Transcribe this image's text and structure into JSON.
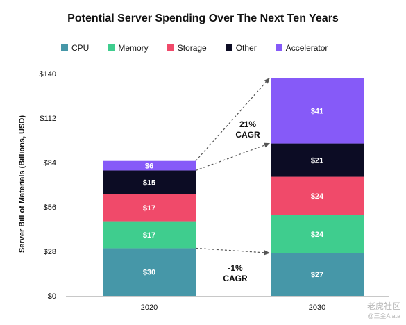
{
  "chart_data": {
    "type": "bar",
    "stacked": true,
    "title": "Potential Server Spending Over The Next Ten Years",
    "ylabel": "Server Bill of Materials (Billions, USD)",
    "xlabel": "",
    "categories": [
      "2020",
      "2030"
    ],
    "ylim": [
      0,
      140
    ],
    "yticks": [
      0,
      28,
      56,
      84,
      112,
      140
    ],
    "ytick_labels": [
      "$0",
      "$28",
      "$56",
      "$84",
      "$112",
      "$140"
    ],
    "series": [
      {
        "name": "CPU",
        "color": "#4697a8",
        "values": [
          30,
          27
        ],
        "labels": [
          "$30",
          "$27"
        ]
      },
      {
        "name": "Memory",
        "color": "#3fcd8e",
        "values": [
          17,
          24
        ],
        "labels": [
          "$17",
          "$24"
        ]
      },
      {
        "name": "Storage",
        "color": "#f04a6a",
        "values": [
          17,
          24
        ],
        "labels": [
          "$17",
          "$24"
        ]
      },
      {
        "name": "Other",
        "color": "#0c0c24",
        "values": [
          15,
          21
        ],
        "labels": [
          "$15",
          "$21"
        ]
      },
      {
        "name": "Accelerator",
        "color": "#865af8",
        "values": [
          6,
          41
        ],
        "labels": [
          "$6",
          "$41"
        ]
      }
    ],
    "annotations": [
      {
        "text": [
          "21%",
          "CAGR"
        ]
      },
      {
        "text": [
          "-1%",
          "CAGR"
        ]
      }
    ],
    "grid": false,
    "legend_position": "top"
  },
  "watermark": {
    "line1": "老虎社区",
    "line2": "@三金Alata"
  }
}
